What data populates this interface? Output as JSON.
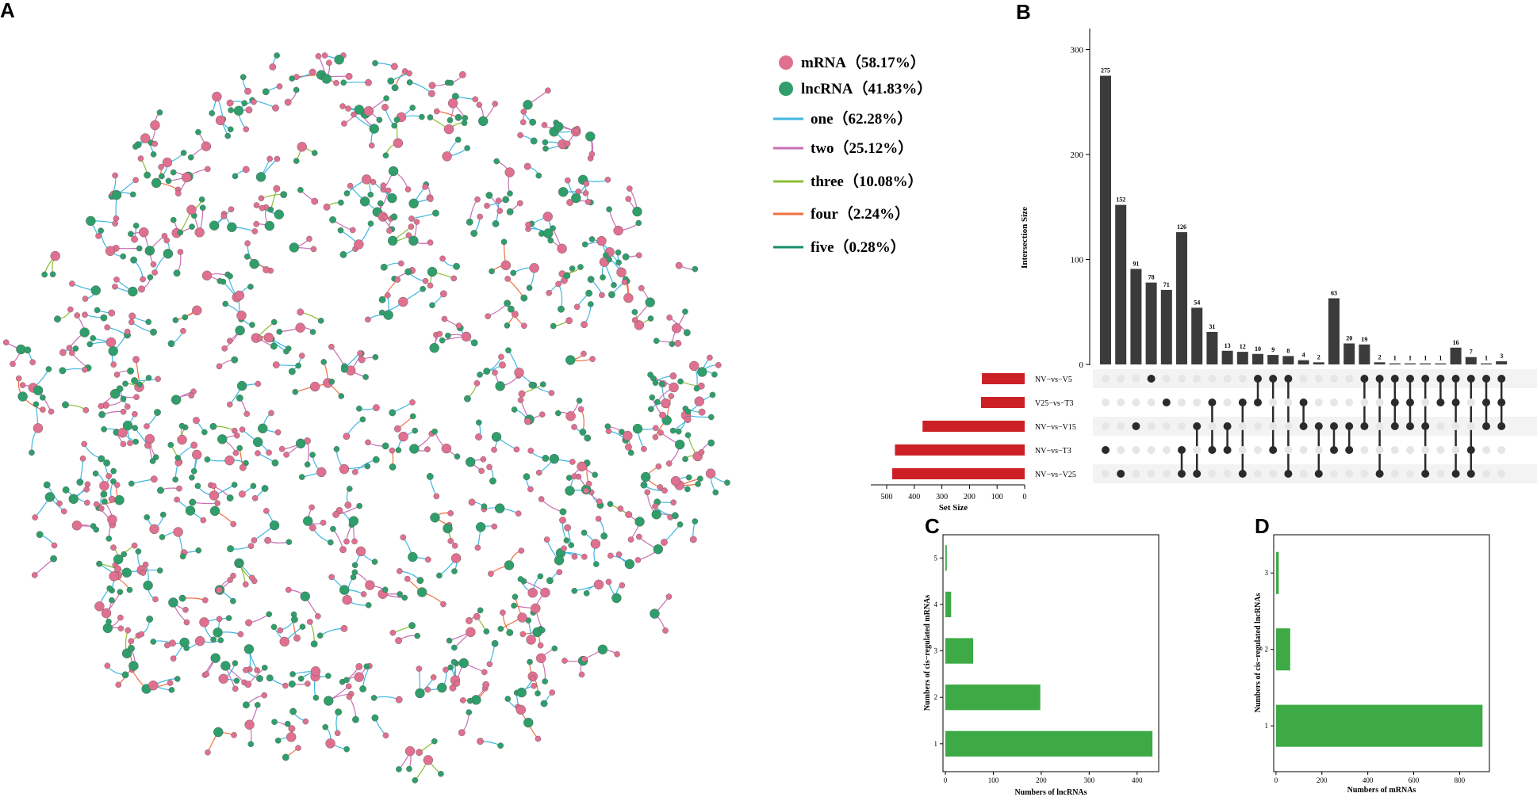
{
  "panels": {
    "a": "A",
    "b": "B",
    "c": "C",
    "d": "D"
  },
  "colors": {
    "mrna": "#e07090",
    "lncrna": "#2f9e6b",
    "one": "#3fb6e0",
    "two": "#c76fb5",
    "three": "#8bbd35",
    "four": "#f07040",
    "five": "#1a8c6a",
    "bar_dark": "#3b3b3b",
    "bar_red": "#cc2027",
    "bar_green": "#3daa45",
    "dot_off": "#e6e6e6",
    "dot_on": "#2b2b2b"
  },
  "network": {
    "node_types": [
      "mRNA",
      "lncRNA"
    ],
    "legend": [
      {
        "kind": "node",
        "key": "mrna",
        "label": "mRNA（58.17%）"
      },
      {
        "kind": "node",
        "key": "lncrna",
        "label": "lncRNA（41.83%）"
      },
      {
        "kind": "edge",
        "key": "one",
        "label": "one（62.28%）"
      },
      {
        "kind": "edge",
        "key": "two",
        "label": "two（25.12%）"
      },
      {
        "kind": "edge",
        "key": "three",
        "label": "three（10.08%）"
      },
      {
        "kind": "edge",
        "key": "four",
        "label": "four（2.24%）"
      },
      {
        "kind": "edge",
        "key": "five",
        "label": "five（0.28%）"
      }
    ]
  },
  "chart_data": [
    {
      "type": "bar",
      "id": "upset-intersections",
      "title": "",
      "ylabel": "Intersection Size",
      "ylim": [
        0,
        320
      ],
      "yticks": [
        0,
        100,
        200,
        300
      ],
      "values": [
        275,
        152,
        91,
        78,
        71,
        126,
        54,
        31,
        13,
        12,
        10,
        9,
        8,
        4,
        2,
        63,
        20,
        19,
        2,
        1,
        1,
        1,
        1,
        16,
        7,
        1,
        3
      ],
      "sets": [
        "NV−vs−V5",
        "V25−vs−T3",
        "NV−vs−V15",
        "NV−vs−T3",
        "NV−vs−V25"
      ],
      "membership": [
        [
          3
        ],
        [
          4
        ],
        [
          2
        ],
        [
          0
        ],
        [
          1
        ],
        [
          3,
          4
        ],
        [
          2,
          4
        ],
        [
          1,
          3
        ],
        [
          2,
          3
        ],
        [
          1,
          4
        ],
        [
          0,
          1
        ],
        [
          0,
          3
        ],
        [
          0,
          4
        ],
        [
          1,
          2
        ],
        [
          2,
          4
        ],
        [
          2,
          3
        ],
        [
          2,
          3
        ],
        [
          0,
          2
        ],
        [
          0,
          4
        ],
        [
          0,
          1,
          2
        ],
        [
          0,
          1,
          2
        ],
        [
          0,
          2,
          4
        ],
        [
          0,
          1
        ],
        [
          0,
          1,
          4
        ],
        [
          0,
          3,
          4
        ],
        [
          0,
          1,
          2
        ],
        [
          0,
          1,
          2
        ]
      ]
    },
    {
      "type": "bar",
      "id": "upset-set-size",
      "orientation": "horizontal",
      "xlabel": "Set Size",
      "xlim": [
        500,
        0
      ],
      "xticks": [
        500,
        400,
        300,
        200,
        100,
        0
      ],
      "categories": [
        "NV−vs−V5",
        "V25−vs−T3",
        "NV−vs−V15",
        "NV−vs−T3",
        "NV−vs−V25"
      ],
      "values": [
        155,
        158,
        370,
        470,
        480
      ]
    },
    {
      "type": "bar",
      "id": "cis-mrnas",
      "orientation": "horizontal",
      "xlabel": "Numbers of lncRNAs",
      "ylabel": "Numbers of cis−regulated mRNAs",
      "xlim": [
        -5,
        445
      ],
      "xticks": [
        0,
        100,
        200,
        300,
        400
      ],
      "categories": [
        "1",
        "2",
        "3",
        "4",
        "5"
      ],
      "values": [
        432,
        198,
        58,
        12,
        3
      ]
    },
    {
      "type": "bar",
      "id": "cis-lncrnas",
      "orientation": "horizontal",
      "xlabel": "Numbers of mRNAs",
      "ylabel": "Numbers of cis−regulated lncRNAs",
      "xlim": [
        -10,
        930
      ],
      "xticks": [
        0,
        200,
        400,
        600,
        800
      ],
      "categories": [
        "1",
        "2",
        "3"
      ],
      "values": [
        900,
        62,
        12
      ]
    }
  ]
}
